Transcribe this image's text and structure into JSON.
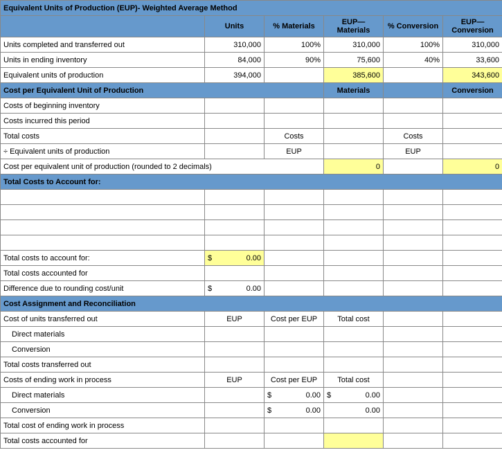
{
  "title": "Equivalent Units of Production (EUP)- Weighted Average Method",
  "headers": {
    "units": "Units",
    "pct_materials": "% Materials",
    "eup_materials": "EUP—\nMaterials",
    "pct_conversion": "% Conversion",
    "eup_conversion": "EUP—\nConversion"
  },
  "rows": {
    "r1": {
      "label": "Units completed and transferred out",
      "units": "310,000",
      "pm": "100%",
      "em": "310,000",
      "pc": "100%",
      "ec": "310,000"
    },
    "r2": {
      "label": "Units in ending inventory",
      "units": "84,000",
      "pm": "90%",
      "em": "75,600",
      "pc": "40%",
      "ec": "33,600"
    },
    "r3": {
      "label": "Equivalent units of production",
      "units": "394,000",
      "em": "385,600",
      "ec": "343,600"
    }
  },
  "section_cost_per": {
    "title": "Cost per Equivalent Unit of Production",
    "materials": "Materials",
    "conversion": "Conversion",
    "beg_inv": "Costs of beginning inventory",
    "incurred": "Costs incurred this period",
    "total_costs": "Total costs",
    "costs": "Costs",
    "div_eup": "÷ Equivalent units of production",
    "eup": "EUP",
    "per_unit": "Cost per equivalent unit of production (rounded to 2 decimals)",
    "zero": "0"
  },
  "section_total_costs": {
    "title": "Total Costs to Account for:",
    "account_for": "Total costs to account for:",
    "accounted_for": "Total costs accounted for",
    "diff": "Difference due to rounding cost/unit",
    "dollar": "$",
    "zero_dec": "0.00"
  },
  "section_assign": {
    "title": "Cost Assignment and Reconciliation",
    "trans_out": "Cost of units transferred out",
    "eup": "EUP",
    "cost_per_eup": "Cost per EUP",
    "total_cost": "Total cost",
    "dm": "Direct materials",
    "conv": "Conversion",
    "total_trans": "Total costs transferred out",
    "ending_wip": "Costs of ending work in process",
    "total_ending": "Total cost of ending work in process",
    "total_acc": "Total costs accounted for",
    "dollar": "$",
    "zero_dec": "0.00"
  },
  "colors": {
    "header_blue": "#6699cc",
    "highlight_yellow": "#ffff99",
    "border": "#888888"
  }
}
